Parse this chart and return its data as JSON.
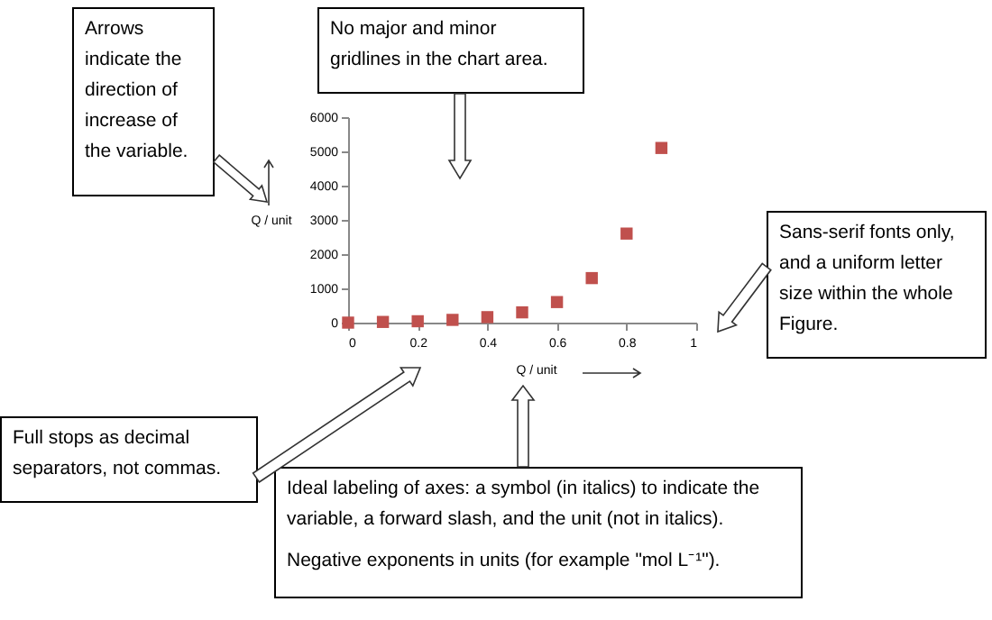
{
  "chart_data": {
    "type": "scatter",
    "x": [
      0,
      0.1,
      0.2,
      0.3,
      0.4,
      0.5,
      0.6,
      0.7,
      0.8,
      0.9
    ],
    "values": [
      0,
      20,
      40,
      80,
      160,
      300,
      600,
      1300,
      2600,
      5100
    ],
    "color": "#c0504d",
    "marker": "square",
    "xlabel": "Q / unit",
    "ylabel": "Q / unit",
    "xlim": [
      0,
      1
    ],
    "xticks": [
      0,
      0.2,
      0.4,
      0.6,
      0.8,
      1
    ],
    "ylim": [
      0,
      6000
    ],
    "yticks": [
      0,
      1000,
      2000,
      3000,
      4000,
      5000,
      6000
    ],
    "annotations": [
      "Arrows indicate the direction of increase of the variable.",
      "No major and minor gridlines in the chart area.",
      "Sans-serif fonts only, and a uniform letter size within the whole Figure.",
      "Full stops as decimal separators, not commas.",
      "Ideal labeling of axes: a symbol (in italics) to indicate the variable, a forward slash, and the unit (not in italics).",
      "Negative exponents in units (for example \"mol L⁻¹\")."
    ]
  }
}
